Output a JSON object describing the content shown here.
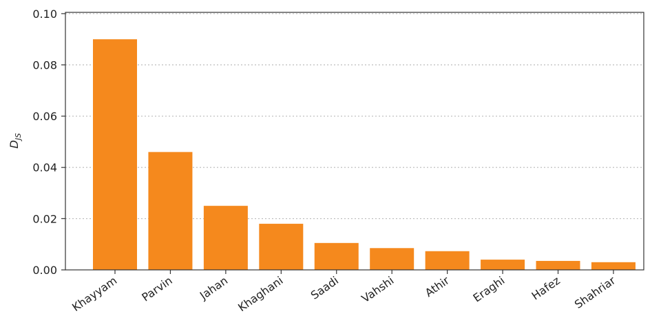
{
  "chart_data": {
    "type": "bar",
    "y_label": {
      "main": "D",
      "sub": "JS"
    },
    "categories": [
      "Khayyam",
      "Parvin",
      "Jahan",
      "Khaghani",
      "Saadi",
      "Vahshi",
      "Athir",
      "Eraghi",
      "Hafez",
      "Shahriar"
    ],
    "values": [
      0.09,
      0.046,
      0.025,
      0.018,
      0.0105,
      0.0085,
      0.0073,
      0.004,
      0.0035,
      0.003
    ],
    "color": "#f5891d",
    "ylim": [
      0,
      0.1005
    ],
    "yticks": [
      {
        "value": 0,
        "label": "0.00"
      },
      {
        "value": 0.02,
        "label": "0.02"
      },
      {
        "value": 0.04,
        "label": "0.04"
      },
      {
        "value": 0.06,
        "label": "0.06"
      },
      {
        "value": 0.08,
        "label": "0.08"
      },
      {
        "value": 0.1,
        "label": "0.10"
      }
    ],
    "grid": true
  }
}
